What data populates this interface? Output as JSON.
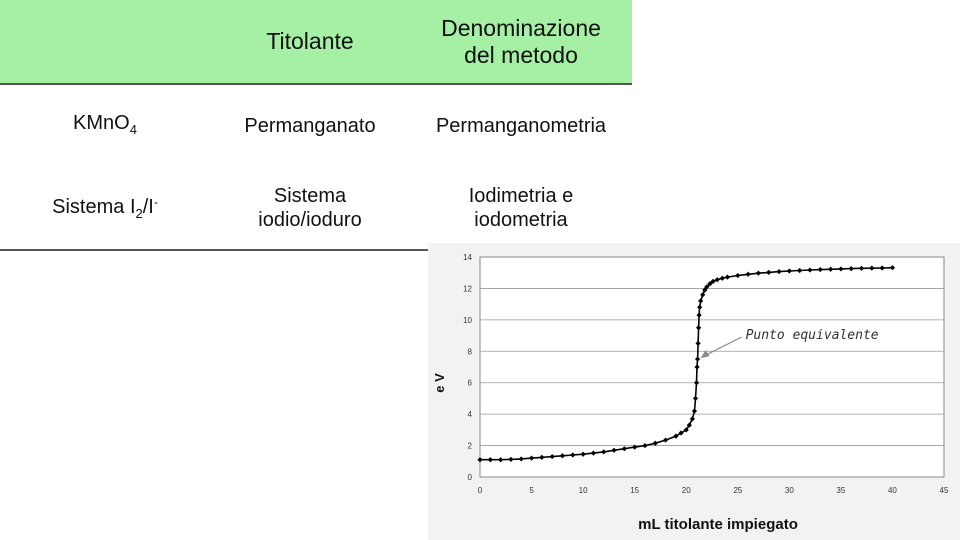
{
  "table": {
    "headers": [
      "",
      "Titolante",
      "Denominazione del metodo"
    ],
    "header_lines": {
      "col2": [
        "Titolante"
      ],
      "col3": [
        "Denominazione",
        "del metodo"
      ]
    },
    "rows": [
      {
        "reagent": {
          "base": "KMnO",
          "sub": "4",
          "tail": "",
          "sup": ""
        },
        "titolante": [
          "Permanganato"
        ],
        "metodo": [
          "Permanganometria"
        ]
      },
      {
        "reagent": {
          "base": "Sistema I",
          "sub": "2",
          "tail": "/I",
          "sup": "-"
        },
        "titolante": [
          "Sistema",
          "iodio/ioduro"
        ],
        "metodo": [
          "Iodimetria e",
          "iodometria"
        ]
      }
    ],
    "header_color": "#a6f0a6"
  },
  "chart_data": {
    "type": "line",
    "xlabel": "mL titolante impiegato",
    "ylabel": "e V",
    "xlim": [
      0,
      45
    ],
    "ylim": [
      0,
      14
    ],
    "xticks": [
      0,
      5,
      10,
      15,
      20,
      25,
      30,
      35,
      40,
      45
    ],
    "yticks": [
      0,
      2,
      4,
      6,
      8,
      10,
      12,
      14
    ],
    "grid": "horizontal",
    "series": [
      {
        "color": "#000000",
        "marker": "diamond",
        "x": [
          0,
          1,
          2,
          3,
          4,
          5,
          6,
          7,
          8,
          9,
          10,
          11,
          12,
          13,
          14,
          15,
          16,
          17,
          18,
          19,
          19.5,
          20,
          20.3,
          20.6,
          20.8,
          20.9,
          21.0,
          21.05,
          21.1,
          21.15,
          21.2,
          21.25,
          21.3,
          21.4,
          21.6,
          21.8,
          22.0,
          22.3,
          22.6,
          23,
          23.5,
          24,
          25,
          26,
          27,
          28,
          29,
          30,
          31,
          32,
          33,
          34,
          35,
          36,
          37,
          38,
          39,
          40
        ],
        "y": [
          1.1,
          1.1,
          1.1,
          1.12,
          1.15,
          1.2,
          1.25,
          1.3,
          1.35,
          1.4,
          1.45,
          1.52,
          1.6,
          1.7,
          1.8,
          1.9,
          2.0,
          2.15,
          2.35,
          2.6,
          2.8,
          3.0,
          3.3,
          3.7,
          4.2,
          5.0,
          6.0,
          7.0,
          7.5,
          8.5,
          9.5,
          10.3,
          10.8,
          11.2,
          11.6,
          11.9,
          12.1,
          12.3,
          12.45,
          12.55,
          12.65,
          12.72,
          12.82,
          12.9,
          12.97,
          13.02,
          13.07,
          13.11,
          13.14,
          13.17,
          13.2,
          13.22,
          13.24,
          13.26,
          13.28,
          13.29,
          13.3,
          13.32
        ]
      }
    ],
    "annotations": [
      {
        "text": "Punto equivalente",
        "x": 21.1,
        "y": 7.5
      }
    ]
  }
}
